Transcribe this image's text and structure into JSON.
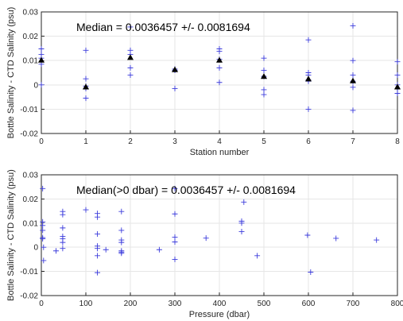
{
  "chart_data": [
    {
      "type": "scatter",
      "annotation": "Median = 0.0036457 +/- 0.0081694",
      "xlabel": "Station number",
      "ylabel": "Bottle Salinity - CTD Salinity (psu)",
      "xlim": [
        0,
        8
      ],
      "ylim": [
        -0.02,
        0.03
      ],
      "xticks": [
        "0",
        "1",
        "2",
        "3",
        "4",
        "5",
        "6",
        "7",
        "8"
      ],
      "yticks": [
        "-0.02",
        "-0.01",
        "0",
        "0.01",
        "0.02",
        "0.03"
      ],
      "grid": true,
      "marker_color": "#3b3bdc",
      "points": [
        {
          "x": 0,
          "y": 0.0148
        },
        {
          "x": 0,
          "y": 0.0125
        },
        {
          "x": 0,
          "y": 0.011
        },
        {
          "x": 0,
          "y": 0.0085
        },
        {
          "x": 0,
          "y": 0.0
        },
        {
          "x": 1,
          "y": 0.0142
        },
        {
          "x": 1,
          "y": 0.0025
        },
        {
          "x": 1,
          "y": -0.0005
        },
        {
          "x": 1,
          "y": -0.0015
        },
        {
          "x": 1,
          "y": -0.0055
        },
        {
          "x": 2,
          "y": 0.0238
        },
        {
          "x": 2,
          "y": 0.0142
        },
        {
          "x": 2,
          "y": 0.0125
        },
        {
          "x": 2,
          "y": 0.007
        },
        {
          "x": 2,
          "y": 0.004
        },
        {
          "x": 3,
          "y": 0.0065
        },
        {
          "x": 3,
          "y": 0.006
        },
        {
          "x": 3,
          "y": -0.0015
        },
        {
          "x": 4,
          "y": 0.0148
        },
        {
          "x": 4,
          "y": 0.0138
        },
        {
          "x": 4,
          "y": 0.0105
        },
        {
          "x": 4,
          "y": 0.007
        },
        {
          "x": 4,
          "y": 0.001
        },
        {
          "x": 5,
          "y": 0.011
        },
        {
          "x": 5,
          "y": 0.006
        },
        {
          "x": 5,
          "y": 0.0035
        },
        {
          "x": 5,
          "y": -0.002
        },
        {
          "x": 5,
          "y": -0.004
        },
        {
          "x": 6,
          "y": 0.0185
        },
        {
          "x": 6,
          "y": 0.005
        },
        {
          "x": 6,
          "y": 0.004
        },
        {
          "x": 6,
          "y": 0.002
        },
        {
          "x": 6,
          "y": 0.0015
        },
        {
          "x": 6,
          "y": -0.01
        },
        {
          "x": 7,
          "y": 0.0243
        },
        {
          "x": 7,
          "y": 0.01
        },
        {
          "x": 7,
          "y": 0.004
        },
        {
          "x": 7,
          "y": 0.0015
        },
        {
          "x": 7,
          "y": -0.001
        },
        {
          "x": 7,
          "y": -0.0105
        },
        {
          "x": 8,
          "y": 0.0095
        },
        {
          "x": 8,
          "y": 0.004
        },
        {
          "x": 8,
          "y": 0.0
        },
        {
          "x": 8,
          "y": -0.0015
        },
        {
          "x": 8,
          "y": -0.0035
        }
      ],
      "medians": [
        {
          "x": 0,
          "y": 0.0102
        },
        {
          "x": 1,
          "y": -0.0008
        },
        {
          "x": 2,
          "y": 0.0113
        },
        {
          "x": 3,
          "y": 0.0063
        },
        {
          "x": 4,
          "y": 0.0102
        },
        {
          "x": 5,
          "y": 0.0035
        },
        {
          "x": 6,
          "y": 0.0025
        },
        {
          "x": 7,
          "y": 0.0017
        },
        {
          "x": 8,
          "y": -0.0008
        }
      ]
    },
    {
      "type": "scatter",
      "annotation": "Median(>0 dbar) = 0.0036457 +/- 0.0081694",
      "xlabel": "Pressure (dbar)",
      "ylabel": "Bottle Salinity - CTD Salinity (psu)",
      "xlim": [
        0,
        800
      ],
      "ylim": [
        -0.02,
        0.03
      ],
      "xticks": [
        "0",
        "100",
        "200",
        "300",
        "400",
        "500",
        "600",
        "700",
        "800"
      ],
      "yticks": [
        "-0.02",
        "-0.01",
        "0",
        "0.01",
        "0.02",
        "0.03"
      ],
      "grid": true,
      "marker_color": "#3b3bdc",
      "points": [
        {
          "x": 3,
          "y": 0.0243
        },
        {
          "x": 3,
          "y": 0.0105
        },
        {
          "x": 3,
          "y": 0.009
        },
        {
          "x": 3,
          "y": 0.007
        },
        {
          "x": 3,
          "y": 0.004
        },
        {
          "x": 3,
          "y": 0.0035
        },
        {
          "x": 5,
          "y": 0.0
        },
        {
          "x": 5,
          "y": -0.0055
        },
        {
          "x": 33,
          "y": -0.0015
        },
        {
          "x": 48,
          "y": 0.0148
        },
        {
          "x": 48,
          "y": 0.0135
        },
        {
          "x": 48,
          "y": 0.008
        },
        {
          "x": 48,
          "y": 0.0045
        },
        {
          "x": 48,
          "y": 0.0035
        },
        {
          "x": 48,
          "y": 0.002
        },
        {
          "x": 48,
          "y": -0.0005
        },
        {
          "x": 100,
          "y": 0.0155
        },
        {
          "x": 126,
          "y": 0.014
        },
        {
          "x": 126,
          "y": 0.0125
        },
        {
          "x": 126,
          "y": 0.0055
        },
        {
          "x": 126,
          "y": 0.0005
        },
        {
          "x": 126,
          "y": -0.0005
        },
        {
          "x": 126,
          "y": -0.0035
        },
        {
          "x": 126,
          "y": -0.0105
        },
        {
          "x": 145,
          "y": -0.001
        },
        {
          "x": 180,
          "y": 0.0148
        },
        {
          "x": 180,
          "y": 0.007
        },
        {
          "x": 180,
          "y": 0.003
        },
        {
          "x": 180,
          "y": 0.002
        },
        {
          "x": 180,
          "y": -0.0015
        },
        {
          "x": 180,
          "y": -0.002
        },
        {
          "x": 180,
          "y": -0.0025
        },
        {
          "x": 265,
          "y": -0.001
        },
        {
          "x": 300,
          "y": 0.0243
        },
        {
          "x": 300,
          "y": 0.0138
        },
        {
          "x": 300,
          "y": 0.0042
        },
        {
          "x": 300,
          "y": 0.0022
        },
        {
          "x": 300,
          "y": -0.005
        },
        {
          "x": 370,
          "y": 0.0038
        },
        {
          "x": 450,
          "y": 0.0108
        },
        {
          "x": 450,
          "y": 0.01
        },
        {
          "x": 450,
          "y": 0.0065
        },
        {
          "x": 455,
          "y": 0.0187
        },
        {
          "x": 485,
          "y": -0.0035
        },
        {
          "x": 598,
          "y": 0.005
        },
        {
          "x": 605,
          "y": -0.0103
        },
        {
          "x": 662,
          "y": 0.0037
        },
        {
          "x": 753,
          "y": 0.003
        }
      ]
    }
  ]
}
